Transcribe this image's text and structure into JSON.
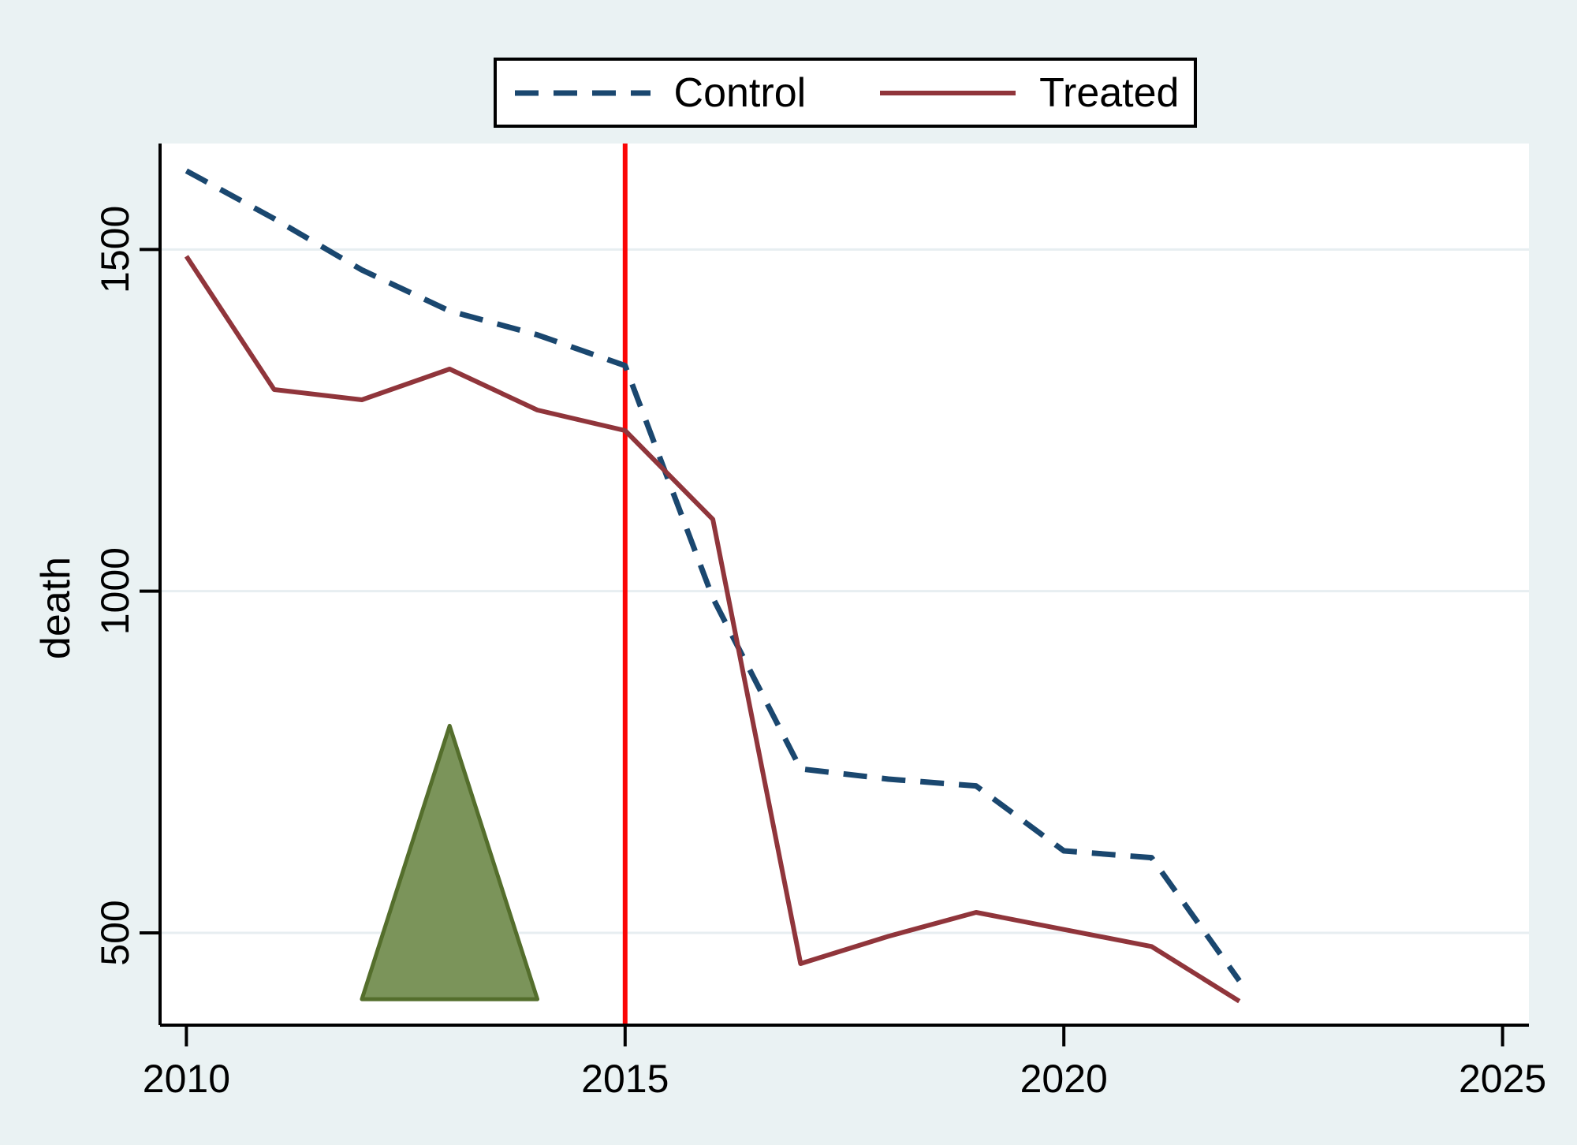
{
  "figure": {
    "background_color": "#eaf2f3",
    "plot_background": "#ffffff",
    "grid_color": "#e7eef1",
    "axis_color": "#000000",
    "tick_label_color": "#000000",
    "tick_font_size": 50,
    "axis_title_font_size": 52
  },
  "legend": {
    "entries": [
      {
        "label": "Control",
        "color": "#1a476f",
        "dashed": true
      },
      {
        "label": "Treated",
        "color": "#90353b",
        "dashed": false
      }
    ],
    "border_color": "#000000",
    "background": "#ffffff"
  },
  "chart_data": {
    "type": "line",
    "title": "",
    "xlabel": "",
    "ylabel": "death",
    "x_ticks": [
      "2010",
      "2015",
      "2020",
      "2025"
    ],
    "x_tick_values": [
      2010,
      2015,
      2020,
      2025
    ],
    "y_ticks": [
      "500",
      "1000",
      "1500"
    ],
    "y_tick_values": [
      500,
      1000,
      1500
    ],
    "xlim": [
      2009.7,
      2025.3
    ],
    "ylim": [
      365,
      1655
    ],
    "grid": "horizontal-only",
    "legend_position": "top-center",
    "x": [
      2010,
      2011,
      2012,
      2013,
      2014,
      2015,
      2016,
      2017,
      2018,
      2019,
      2020,
      2021,
      2022
    ],
    "series": [
      {
        "name": "Control",
        "color": "#1a476f",
        "style": "dashed",
        "values": [
          1615,
          1545,
          1470,
          1410,
          1375,
          1330,
          990,
          740,
          725,
          715,
          620,
          610,
          430
        ]
      },
      {
        "name": "Treated",
        "color": "#90353b",
        "style": "solid",
        "values": [
          1490,
          1295,
          1280,
          1325,
          1265,
          1235,
          1105,
          455,
          495,
          530,
          505,
          480,
          400
        ]
      }
    ],
    "annotations": {
      "vline": {
        "x": 2015,
        "color": "#fb0505",
        "width": 6
      },
      "triangle": {
        "points": [
          [
            2012.0,
            403
          ],
          [
            2013.0,
            803
          ],
          [
            2014.0,
            403
          ]
        ],
        "fill": "#7b945a",
        "stroke": "#546e2c"
      }
    }
  }
}
